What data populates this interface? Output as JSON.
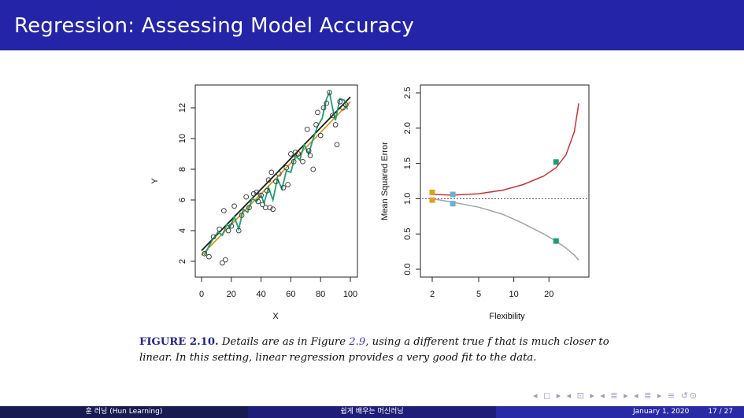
{
  "slide": {
    "title": "Regression: Assessing Model Accuracy"
  },
  "figure": {
    "label": "FIGURE 2.10.",
    "caption_pre": "Details are as in Figure",
    "caption_ref": "2.9",
    "caption_post": ", using a different true",
    "caption_var": "f",
    "caption_line1_end": "that is",
    "caption_line2": "much closer to linear. In this setting, linear regression provides a very good fit to",
    "caption_line3": "the data."
  },
  "footer": {
    "left": "훈 러닝 (Hun Learning)",
    "center": "쉽게 배우는 머신러닝",
    "date": "January 1, 2020",
    "page": "17 / 27"
  },
  "nav_symbols": "◂ ◻ ▸ ◂ ⊡ ▸ ◂ ≣ ▸ ◂ ≣ ▸   ≡   ↺⊙",
  "chart_data": [
    {
      "type": "scatter",
      "xlabel": "X",
      "ylabel": "Y",
      "xlim": [
        0,
        100
      ],
      "ylim": [
        1.5,
        13.2
      ],
      "xticks": [
        "0",
        "20",
        "40",
        "60",
        "80",
        "100"
      ],
      "yticks": [
        "2",
        "4",
        "6",
        "8",
        "10",
        "12"
      ],
      "points": [
        [
          2,
          2.5
        ],
        [
          5,
          2.3
        ],
        [
          8,
          3.6
        ],
        [
          12,
          4.1
        ],
        [
          14,
          1.9
        ],
        [
          16,
          2.1
        ],
        [
          15,
          5.3
        ],
        [
          18,
          4.0
        ],
        [
          20,
          4.3
        ],
        [
          22,
          5.6
        ],
        [
          25,
          4.0
        ],
        [
          27,
          5.0
        ],
        [
          30,
          6.2
        ],
        [
          32,
          5.5
        ],
        [
          35,
          6.4
        ],
        [
          37,
          6.5
        ],
        [
          38,
          5.9
        ],
        [
          40,
          6.3
        ],
        [
          41,
          5.7
        ],
        [
          43,
          5.5
        ],
        [
          44,
          6.6
        ],
        [
          45,
          7.3
        ],
        [
          46,
          5.5
        ],
        [
          47,
          7.8
        ],
        [
          48,
          5.4
        ],
        [
          50,
          7.2
        ],
        [
          52,
          7.7
        ],
        [
          55,
          6.8
        ],
        [
          57,
          8.1
        ],
        [
          58,
          7.0
        ],
        [
          60,
          9.0
        ],
        [
          62,
          8.5
        ],
        [
          63,
          9.1
        ],
        [
          65,
          9.0
        ],
        [
          68,
          8.5
        ],
        [
          71,
          10.6
        ],
        [
          72,
          9.2
        ],
        [
          73,
          8.9
        ],
        [
          75,
          8.0
        ],
        [
          77,
          10.9
        ],
        [
          78,
          11.7
        ],
        [
          80,
          10.2
        ],
        [
          82,
          12.0
        ],
        [
          84,
          12.3
        ],
        [
          86,
          13.0
        ],
        [
          88,
          11.5
        ],
        [
          90,
          10.9
        ],
        [
          91,
          9.6
        ],
        [
          93,
          12.4
        ],
        [
          95,
          12.0
        ],
        [
          97,
          12.2
        ]
      ],
      "series": [
        {
          "color": "#1a1a1a",
          "values": [
            [
              0,
              2.7
            ],
            [
              100,
              12.7
            ]
          ]
        },
        {
          "color": "#d89a1c",
          "values": [
            [
              0,
              2.4
            ],
            [
              100,
              12.4
            ]
          ]
        },
        {
          "color": "#1e9e72",
          "values": [
            [
              2,
              2.4
            ],
            [
              5,
              3.0
            ],
            [
              8,
              3.5
            ],
            [
              11,
              3.9
            ],
            [
              14,
              3.7
            ],
            [
              17,
              4.4
            ],
            [
              19,
              4.2
            ],
            [
              22,
              4.9
            ],
            [
              25,
              4.1
            ],
            [
              28,
              5.4
            ],
            [
              31,
              5.2
            ],
            [
              34,
              6.1
            ],
            [
              37,
              5.9
            ],
            [
              40,
              6.3
            ],
            [
              42,
              5.8
            ],
            [
              45,
              6.8
            ],
            [
              48,
              6.0
            ],
            [
              51,
              7.4
            ],
            [
              54,
              6.7
            ],
            [
              57,
              7.9
            ],
            [
              60,
              7.8
            ],
            [
              63,
              8.9
            ],
            [
              66,
              8.6
            ],
            [
              69,
              9.6
            ],
            [
              72,
              9.0
            ],
            [
              75,
              10.0
            ],
            [
              78,
              10.8
            ],
            [
              81,
              11.3
            ],
            [
              84,
              12.6
            ],
            [
              86,
              13.0
            ],
            [
              88,
              12.0
            ],
            [
              90,
              11.2
            ],
            [
              93,
              12.6
            ],
            [
              96,
              12.5
            ],
            [
              98,
              11.9
            ]
          ]
        }
      ]
    },
    {
      "type": "line",
      "xlabel": "Flexibility",
      "ylabel": "Mean Squared Error",
      "ylim": [
        0.0,
        2.5
      ],
      "xscale": "log",
      "xticks": [
        "2",
        "5",
        "10",
        "20"
      ],
      "yticks": [
        "0.0",
        "0.5",
        "1.0",
        "1.5",
        "2.0",
        "2.5"
      ],
      "series": [
        {
          "color": "#cc3333",
          "values": [
            [
              2,
              1.06
            ],
            [
              3,
              1.05
            ],
            [
              5,
              1.07
            ],
            [
              8,
              1.12
            ],
            [
              12,
              1.2
            ],
            [
              18,
              1.32
            ],
            [
              23,
              1.44
            ],
            [
              28,
              1.62
            ],
            [
              33,
              1.95
            ],
            [
              36,
              2.35
            ]
          ]
        },
        {
          "color": "#a3a3a3",
          "values": [
            [
              2,
              1.0
            ],
            [
              3,
              0.95
            ],
            [
              5,
              0.88
            ],
            [
              8,
              0.78
            ],
            [
              12,
              0.65
            ],
            [
              18,
              0.5
            ],
            [
              23,
              0.4
            ],
            [
              28,
              0.3
            ],
            [
              33,
              0.2
            ],
            [
              36,
              0.13
            ]
          ]
        }
      ],
      "reference_line": 1.0,
      "markers": [
        {
          "x": 2,
          "y": 1.09,
          "color": "#e0a020"
        },
        {
          "x": 2,
          "y": 0.98,
          "color": "#e0a020"
        },
        {
          "x": 3,
          "y": 1.06,
          "color": "#6aaed6"
        },
        {
          "x": 3,
          "y": 0.93,
          "color": "#6aaed6"
        },
        {
          "x": 23,
          "y": 1.52,
          "color": "#1e9e72"
        },
        {
          "x": 23,
          "y": 0.4,
          "color": "#1e9e72"
        }
      ]
    }
  ]
}
